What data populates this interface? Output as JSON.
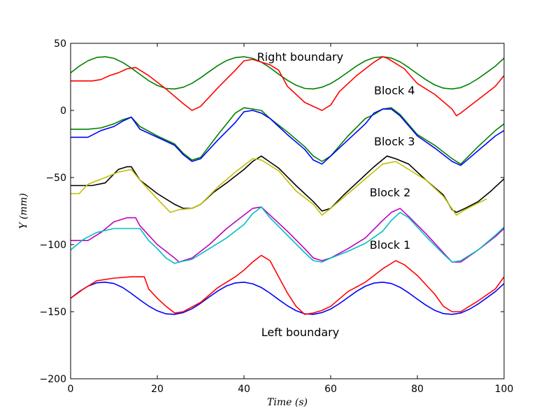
{
  "chart_data": {
    "type": "line",
    "title": "",
    "xlabel": "Time (s)",
    "ylabel": "Y (mm)",
    "xlim": [
      0,
      100
    ],
    "ylim": [
      -200,
      50
    ],
    "grid": false,
    "xticks": [
      0,
      20,
      40,
      60,
      80,
      100
    ],
    "yticks": [
      -200,
      -150,
      -100,
      -50,
      0,
      50
    ],
    "xtick_labels": [
      "0",
      "20",
      "40",
      "60",
      "80",
      "100"
    ],
    "ytick_labels": [
      "−200",
      "−150",
      "−100",
      "−50",
      "0",
      "50"
    ],
    "annotations": [
      {
        "text": "Right boundary",
        "x": 43,
        "y": 40
      },
      {
        "text": "Block 4",
        "x": 70,
        "y": 15
      },
      {
        "text": "Block 3",
        "x": 70,
        "y": -23
      },
      {
        "text": "Block 2",
        "x": 69,
        "y": -61
      },
      {
        "text": "Block 1",
        "x": 69,
        "y": -100
      },
      {
        "text": "Left boundary",
        "x": 44,
        "y": -165
      }
    ],
    "series": [
      {
        "color": "#008000",
        "x": [
          0,
          2,
          4,
          6,
          8,
          10,
          12,
          14,
          16,
          18,
          20,
          22,
          24,
          26,
          28,
          30,
          32,
          34,
          36,
          38,
          40,
          42,
          44,
          46,
          48,
          50,
          52,
          54,
          56,
          58,
          60,
          62,
          64,
          66,
          68,
          70,
          72,
          74,
          76,
          78,
          80,
          82,
          84,
          86,
          88,
          90,
          92,
          94,
          96,
          98,
          100
        ],
        "y": [
          28,
          33,
          37,
          39.5,
          40,
          38.8,
          35.8,
          31.6,
          26.8,
          22.2,
          18.6,
          16.4,
          16,
          17.3,
          20.2,
          24.3,
          29,
          33.5,
          37.2,
          39.4,
          40,
          38.8,
          36,
          31.8,
          27,
          22.5,
          18.8,
          16.4,
          16,
          17.3,
          20,
          24,
          28.6,
          33.2,
          37,
          39.3,
          40,
          39,
          36.2,
          32,
          27.3,
          22.8,
          19,
          16.6,
          16,
          17,
          19.8,
          23.7,
          28.3,
          33,
          39
        ]
      },
      {
        "color": "#ff0000",
        "x": [
          0,
          5,
          7,
          9,
          11,
          13,
          15,
          18,
          22,
          26,
          28,
          30,
          34,
          38,
          40,
          42,
          44,
          46,
          48,
          50,
          54,
          58,
          60,
          62,
          66,
          70,
          72,
          73,
          75,
          77,
          80,
          84,
          88,
          89,
          90,
          94,
          98,
          100
        ],
        "y": [
          22,
          22,
          23,
          26,
          28,
          31,
          32,
          26,
          16,
          5,
          0,
          3,
          17,
          30,
          37,
          38,
          36,
          34,
          30,
          18,
          6,
          0,
          4,
          14,
          26,
          36,
          40,
          39,
          35,
          31,
          20,
          12,
          1,
          -4,
          -2,
          8,
          18,
          26
        ]
      },
      {
        "color": "#008000",
        "x": [
          0,
          4,
          7,
          10,
          12,
          14,
          16,
          20,
          24,
          26,
          28,
          30,
          34,
          38,
          40,
          42,
          44,
          46,
          50,
          54,
          56,
          58,
          60,
          64,
          68,
          70,
          72,
          74,
          76,
          80,
          84,
          88,
          90,
          94,
          98,
          100
        ],
        "y": [
          -14,
          -14,
          -13,
          -10,
          -7,
          -5,
          -12,
          -19,
          -25,
          -32,
          -37,
          -35,
          -18,
          -2,
          2,
          1,
          0,
          -6,
          -16,
          -27,
          -34,
          -38,
          -34,
          -19,
          -6,
          -3,
          1,
          2,
          -3,
          -18,
          -26,
          -36,
          -40,
          -27,
          -15,
          -10
        ]
      },
      {
        "color": "#0000ff",
        "x": [
          0,
          4,
          7,
          10,
          12,
          14,
          16,
          20,
          24,
          26,
          28,
          30,
          34,
          38,
          40,
          42,
          44,
          46,
          50,
          54,
          56,
          58,
          60,
          64,
          68,
          70,
          72,
          74,
          76,
          80,
          84,
          88,
          90,
          94,
          98,
          100
        ],
        "y": [
          -20,
          -20,
          -15,
          -12,
          -8,
          -5,
          -14,
          -20,
          -26,
          -33,
          -38,
          -36,
          -22,
          -9,
          -1,
          0,
          -2,
          -6,
          -18,
          -29,
          -37,
          -40,
          -34,
          -22,
          -10,
          -2,
          1,
          1,
          -4,
          -19,
          -28,
          -38,
          -41,
          -30,
          -19,
          -15
        ]
      },
      {
        "color": "#000000",
        "x": [
          0,
          5,
          8,
          11,
          13,
          14,
          16,
          20,
          24,
          26,
          28,
          30,
          33,
          36,
          40,
          42,
          44,
          48,
          52,
          56,
          58,
          60,
          63,
          66,
          70,
          73,
          75,
          78,
          82,
          86,
          88,
          89,
          91,
          94,
          97,
          100
        ],
        "y": [
          -56,
          -56,
          -54,
          -44,
          -42,
          -42,
          -52,
          -62,
          -70,
          -73,
          -73,
          -70,
          -61,
          -54,
          -44,
          -38,
          -34,
          -43,
          -56,
          -68,
          -75,
          -73,
          -63,
          -54,
          -42,
          -34,
          -36,
          -40,
          -52,
          -63,
          -74,
          -76,
          -73,
          -68,
          -60,
          -51
        ]
      },
      {
        "color": "#bfbf00",
        "x": [
          0,
          2,
          4,
          8,
          11,
          14,
          16,
          20,
          23,
          25,
          28,
          30,
          34,
          38,
          42,
          44,
          48,
          52,
          56,
          58,
          60,
          64,
          68,
          72,
          75,
          78,
          82,
          86,
          89,
          91,
          94,
          96
        ],
        "y": [
          -62,
          -62,
          -55,
          -50,
          -46,
          -44,
          -52,
          -66,
          -76,
          -74,
          -73,
          -70,
          -57,
          -46,
          -36,
          -37,
          -45,
          -60,
          -70,
          -78,
          -73,
          -62,
          -51,
          -40,
          -38,
          -44,
          -52,
          -64,
          -78,
          -74,
          -69,
          -66
        ]
      },
      {
        "color": "#bf00bf",
        "x": [
          0,
          4,
          7,
          10,
          13,
          15,
          16,
          18,
          20,
          24,
          25,
          28,
          32,
          36,
          40,
          42,
          44,
          46,
          50,
          54,
          56,
          58,
          60,
          64,
          68,
          72,
          74,
          76,
          78,
          82,
          86,
          88,
          90,
          94,
          98,
          100
        ],
        "y": [
          -97,
          -97,
          -91,
          -83,
          -80,
          -80,
          -86,
          -93,
          -100,
          -110,
          -113,
          -110,
          -100,
          -88,
          -78,
          -73,
          -72,
          -78,
          -90,
          -103,
          -110,
          -112,
          -110,
          -103,
          -95,
          -82,
          -76,
          -73,
          -79,
          -92,
          -106,
          -113,
          -113,
          -104,
          -94,
          -88
        ]
      },
      {
        "color": "#00bfbf",
        "x": [
          0,
          3,
          6,
          10,
          14,
          16,
          18,
          20,
          22,
          24,
          25,
          28,
          32,
          36,
          40,
          42,
          44,
          46,
          50,
          54,
          56,
          58,
          60,
          64,
          68,
          72,
          74,
          76,
          78,
          82,
          86,
          88,
          90,
          94,
          98,
          100
        ],
        "y": [
          -104,
          -96,
          -91,
          -88,
          -88,
          -88,
          -97,
          -103,
          -110,
          -114,
          -113,
          -111,
          -103,
          -95,
          -85,
          -77,
          -72,
          -80,
          -93,
          -106,
          -112,
          -113,
          -110,
          -105,
          -99,
          -90,
          -82,
          -76,
          -80,
          -94,
          -107,
          -113,
          -112,
          -104,
          -93,
          -87
        ]
      },
      {
        "color": "#0000ff",
        "x": [
          0,
          2,
          4,
          6,
          8,
          10,
          12,
          14,
          16,
          18,
          20,
          22,
          24,
          26,
          28,
          30,
          32,
          34,
          36,
          38,
          40,
          42,
          44,
          46,
          48,
          50,
          52,
          54,
          56,
          58,
          60,
          62,
          64,
          66,
          68,
          70,
          72,
          74,
          76,
          78,
          80,
          82,
          84,
          86,
          88,
          90,
          92,
          94,
          96,
          98,
          100
        ],
        "y": [
          -140,
          -135,
          -131,
          -128.5,
          -128,
          -129,
          -132,
          -136.4,
          -141.2,
          -145.8,
          -149.4,
          -151.6,
          -152,
          -150.7,
          -147.8,
          -143.7,
          -139,
          -134.5,
          -130.8,
          -128.6,
          -128,
          -129.2,
          -132,
          -136.2,
          -141,
          -145.5,
          -149.2,
          -151.6,
          -152,
          -150.7,
          -148,
          -144,
          -139.4,
          -134.8,
          -131,
          -128.7,
          -128,
          -129,
          -131.8,
          -136,
          -140.7,
          -145.2,
          -149,
          -151.4,
          -152,
          -151,
          -148.2,
          -144.3,
          -139.7,
          -135,
          -129
        ]
      },
      {
        "color": "#ff0000",
        "x": [
          0,
          3,
          6,
          10,
          14,
          17,
          18,
          20,
          22,
          24,
          26,
          30,
          34,
          38,
          40,
          42,
          44,
          46,
          48,
          50,
          52,
          54,
          56,
          58,
          60,
          64,
          68,
          70,
          72,
          75,
          77,
          80,
          84,
          86,
          88,
          90,
          94,
          98,
          100
        ],
        "y": [
          -140,
          -133,
          -127,
          -125,
          -124,
          -124,
          -133,
          -140,
          -146,
          -151,
          -150,
          -143,
          -132,
          -124,
          -119,
          -113,
          -108,
          -112,
          -124,
          -136,
          -146,
          -152,
          -151,
          -149,
          -146,
          -135,
          -128,
          -123,
          -118,
          -112,
          -115,
          -123,
          -137,
          -146,
          -150,
          -150,
          -142,
          -133,
          -124
        ]
      }
    ]
  }
}
